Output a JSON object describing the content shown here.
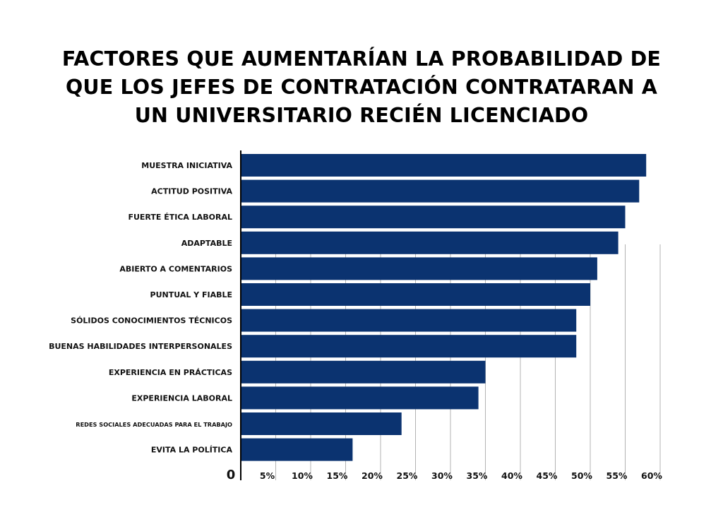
{
  "chart_data": {
    "type": "bar",
    "orientation": "horizontal",
    "title_lines": [
      "FACTORES QUE AUMENTARÍAN LA PROBABILIDAD DE",
      "QUE LOS JEFES DE CONTRATACIÓN CONTRATARAN A",
      "UN UNIVERSITARIO RECIÉN LICENCIADO"
    ],
    "categories": [
      "MUESTRA INICIATIVA",
      "ACTITUD POSITIVA",
      "FUERTE ÉTICA LABORAL",
      "ADAPTABLE",
      "ABIERTO A COMENTARIOS",
      "PUNTUAL Y FIABLE",
      "SÓLIDOS CONOCIMIENTOS TÉCNICOS",
      "BUENAS HABILIDADES INTERPERSONALES",
      "EXPERIENCIA EN PRÁCTICAS",
      "EXPERIENCIA LABORAL",
      "REDES SOCIALES ADECUADAS PARA EL TRABAJO",
      "EVITA LA POLÍTICA"
    ],
    "values": [
      58,
      57,
      55,
      54,
      51,
      50,
      48,
      48,
      35,
      34,
      23,
      16
    ],
    "xlim": [
      0,
      60
    ],
    "x_ticks": [
      0,
      5,
      10,
      15,
      20,
      25,
      30,
      35,
      40,
      45,
      50,
      55,
      60
    ],
    "x_tick_labels": [
      "0",
      "5%",
      "10%",
      "15%",
      "20%",
      "25%",
      "30%",
      "35%",
      "40%",
      "45%",
      "50%",
      "55%",
      "60%"
    ],
    "bar_color": "#0b3370",
    "grid": true,
    "xlabel": "",
    "ylabel": ""
  }
}
